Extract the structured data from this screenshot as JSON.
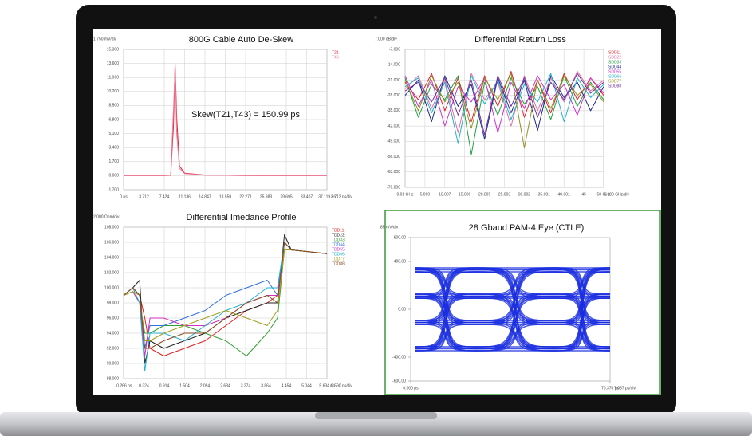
{
  "chart_data": [
    {
      "type": "line",
      "title": "800G Cable Auto De-Skew",
      "y_unit_label": "1.750 mV/div",
      "x_unit_label": "3.712 ns/div",
      "annotation": "Skew(T21,T43)  = 150.99 ps",
      "grid": true,
      "x": [
        0,
        3.712,
        7.424,
        8.6,
        9.1,
        9.4,
        9.7,
        10.2,
        11.136,
        14.847,
        22.271,
        29.695,
        37.119
      ],
      "series": [
        {
          "name": "T21",
          "color": "#e02030",
          "values": [
            0,
            0,
            0,
            50,
            6000,
            13600,
            7000,
            1200,
            300,
            80,
            20,
            0,
            0
          ]
        },
        {
          "name": "T43",
          "color": "#f080a0",
          "values": [
            0,
            0,
            0,
            80,
            8000,
            13000,
            5000,
            900,
            250,
            60,
            20,
            0,
            0
          ]
        }
      ],
      "xlim": [
        0,
        37.119
      ],
      "xticks": [
        {
          "value": 0,
          "label": "0 ns"
        },
        3.712,
        7.424,
        11.136,
        14.847,
        18.559,
        22.271,
        25.983,
        29.695,
        33.407,
        {
          "value": 37.119,
          "label": "37.119 ns"
        }
      ],
      "ylim": [
        -1700,
        15300
      ],
      "yticks": [
        {
          "value": 15300,
          "label": "15,300"
        },
        {
          "value": 13600,
          "label": "13,600"
        },
        {
          "value": 11900,
          "label": "11,900"
        },
        {
          "value": 10200,
          "label": "10,200"
        },
        {
          "value": 8500,
          "label": "8,500"
        },
        {
          "value": 6800,
          "label": "6,800"
        },
        {
          "value": 5100,
          "label": "5,100"
        },
        {
          "value": 3400,
          "label": "3,400"
        },
        {
          "value": 1700,
          "label": "1,700"
        },
        {
          "value": 0,
          "label": "0.000"
        },
        {
          "value": -1700,
          "label": "-1,700"
        }
      ]
    },
    {
      "type": "line",
      "title": "Differential Return Loss",
      "y_unit_label": "7.000 dB/div",
      "x_unit_label": "5.000 GHz/div",
      "grid": true,
      "x": [
        0.01,
        3.34,
        6.68,
        10.01,
        13.35,
        16.68,
        20.02,
        23.35,
        26.69,
        30.02,
        33.36,
        36.69,
        40.03,
        43.36,
        46.7,
        50
      ],
      "series": [
        {
          "name": "SDD11",
          "color": "#e0202a",
          "values": [
            -22,
            -30,
            -18,
            -35,
            -20,
            -40,
            -19,
            -33,
            -17,
            -38,
            -21,
            -36,
            -18,
            -30,
            -20,
            -28
          ]
        },
        {
          "name": "SDD22",
          "color": "#e070a0",
          "values": [
            -25,
            -19,
            -34,
            -21,
            -45,
            -18,
            -30,
            -22,
            -42,
            -19,
            -35,
            -20,
            -31,
            -17,
            -26,
            -21
          ]
        },
        {
          "name": "SDD33",
          "color": "#20a040",
          "values": [
            -20,
            -38,
            -23,
            -30,
            -19,
            -55,
            -22,
            -37,
            -20,
            -32,
            -24,
            -39,
            -19,
            -33,
            -22,
            -30
          ]
        },
        {
          "name": "SDD44",
          "color": "#1a2a8a",
          "values": [
            -28,
            -21,
            -40,
            -19,
            -33,
            -23,
            -48,
            -20,
            -36,
            -21,
            -44,
            -19,
            -29,
            -22,
            -35,
            -24
          ]
        },
        {
          "name": "SDD55",
          "color": "#d030d0",
          "values": [
            -19,
            -33,
            -21,
            -42,
            -24,
            -31,
            -20,
            -45,
            -22,
            -34,
            -19,
            -30,
            -23,
            -37,
            -20,
            -27
          ]
        },
        {
          "name": "SDD66",
          "color": "#20b0d0",
          "values": [
            -24,
            -20,
            -36,
            -22,
            -50,
            -19,
            -32,
            -21,
            -39,
            -23,
            -31,
            -18,
            -40,
            -20,
            -29,
            -23
          ]
        },
        {
          "name": "SDD77",
          "color": "#909020",
          "values": [
            -21,
            -35,
            -19,
            -31,
            -22,
            -43,
            -20,
            -30,
            -18,
            -52,
            -21,
            -34,
            -19,
            -28,
            -23,
            -31
          ]
        },
        {
          "name": "SDD88",
          "color": "#7030a0",
          "values": [
            -26,
            -22,
            -31,
            -20,
            -37,
            -21,
            -46,
            -19,
            -33,
            -20,
            -38,
            -22,
            -30,
            -18,
            -27,
            -22
          ]
        }
      ],
      "xlim": [
        0.01,
        50
      ],
      "xticks": [
        {
          "value": 0.01,
          "label": "0.01 GHz"
        },
        5.009,
        10.007,
        15.006,
        20.005,
        25.003,
        30.002,
        35.001,
        40.001,
        45.0,
        {
          "value": 50,
          "label": "50 GHz"
        }
      ],
      "ylim": [
        -70,
        -7
      ],
      "yticks": [
        {
          "value": -7,
          "label": "-7.000"
        },
        {
          "value": -14,
          "label": "-14.000"
        },
        {
          "value": -21,
          "label": "-21.000"
        },
        {
          "value": -28,
          "label": "-28.000"
        },
        {
          "value": -35,
          "label": "-35.000"
        },
        {
          "value": -42,
          "label": "-42.000"
        },
        {
          "value": -49,
          "label": "-49.000"
        },
        {
          "value": -56,
          "label": "-56.000"
        },
        {
          "value": -63,
          "label": "-63.000"
        },
        {
          "value": -70,
          "label": "-70.000"
        }
      ]
    },
    {
      "type": "line",
      "title": "Differential Imedance Profile",
      "y_unit_label": "2.000 Ohm/div",
      "x_unit_label": "0.590 ns/div",
      "grid": true,
      "x": [
        -0.266,
        0,
        0.2,
        0.35,
        0.5,
        0.9,
        1.5,
        2.1,
        2.7,
        3.3,
        3.9,
        4.2,
        4.4,
        4.6,
        5.634
      ],
      "series": [
        {
          "name": "TDD11",
          "color": "#e02020",
          "values": [
            99,
            100,
            99,
            96,
            92,
            91,
            92,
            93,
            95,
            97,
            98,
            99,
            106,
            105,
            104.5
          ]
        },
        {
          "name": "TDD22",
          "color": "#222222",
          "values": [
            99,
            100,
            101,
            90,
            93,
            92,
            93,
            94,
            96,
            97,
            98,
            98,
            107,
            105,
            104.5
          ]
        },
        {
          "name": "TDD33",
          "color": "#30a030",
          "values": [
            99,
            99.5,
            98,
            94,
            94,
            95,
            95,
            94,
            93,
            91,
            94,
            96,
            105,
            105,
            104.5
          ]
        },
        {
          "name": "TDD44",
          "color": "#3070e0",
          "values": [
            99,
            100,
            99,
            92,
            95,
            95,
            96,
            97,
            99,
            100,
            101,
            99,
            106,
            105,
            104.5
          ]
        },
        {
          "name": "TDD55",
          "color": "#d030c0",
          "values": [
            99,
            99.5,
            98,
            91,
            96,
            96,
            95,
            95,
            96,
            98,
            99,
            99,
            105,
            105,
            104.5
          ]
        },
        {
          "name": "TDD66",
          "color": "#20b0d0",
          "values": [
            99,
            100,
            98,
            89,
            94,
            94,
            93,
            95,
            97,
            98,
            100,
            100,
            106,
            105,
            104.5
          ]
        },
        {
          "name": "TDD77",
          "color": "#a0a020",
          "values": [
            99,
            99.5,
            99,
            93,
            93,
            94,
            95,
            96,
            97,
            96,
            95,
            97,
            105,
            105,
            104.5
          ]
        },
        {
          "name": "TDD88",
          "color": "#8a4a20",
          "values": [
            99,
            100,
            99,
            92,
            92,
            93,
            94,
            94,
            96,
            98,
            99,
            98,
            106,
            105,
            104.5
          ]
        }
      ],
      "xlim": [
        -0.266,
        5.634
      ],
      "xticks": [
        {
          "value": -0.266,
          "label": "-0.266 ns"
        },
        0.324,
        0.914,
        1.504,
        2.094,
        2.684,
        3.274,
        3.864,
        4.454,
        5.044,
        {
          "value": 5.634,
          "label": "5.634 ns"
        }
      ],
      "ylim": [
        88,
        108
      ],
      "yticks": [
        {
          "value": 108,
          "label": "108.000"
        },
        {
          "value": 106,
          "label": "106.000"
        },
        {
          "value": 104,
          "label": "104.000"
        },
        {
          "value": 102,
          "label": "102.000"
        },
        {
          "value": 100,
          "label": "100.000"
        },
        {
          "value": 98,
          "label": "98.000"
        },
        {
          "value": 96,
          "label": "96.000"
        },
        {
          "value": 94,
          "label": "94.000"
        },
        {
          "value": 92,
          "label": "92.000"
        },
        {
          "value": 90,
          "label": "90.000"
        },
        {
          "value": 88,
          "label": "88.000"
        }
      ]
    },
    {
      "type": "eye",
      "title": "28 Gbaud PAM-4 Eye (CTLE)",
      "y_unit_label": "85 mV/div",
      "x_unit_label": "7.037 ps/div",
      "grid": false,
      "color": "#1a2ee0",
      "levels": [
        -330,
        -110,
        110,
        330
      ],
      "xlim": [
        0,
        70.37
      ],
      "xticks": [
        {
          "value": 0,
          "label": "0.000 ps"
        },
        {
          "value": 70.37,
          "label": "70.370 ps"
        }
      ],
      "ylim": [
        -600,
        600
      ],
      "yticks": [
        {
          "value": 600,
          "label": "600.00"
        },
        {
          "value": 400,
          "label": "400.00"
        },
        {
          "value": 0,
          "label": "0.00"
        },
        {
          "value": -400,
          "label": "-400.00"
        },
        {
          "value": -600,
          "label": "-600.00"
        }
      ]
    }
  ]
}
